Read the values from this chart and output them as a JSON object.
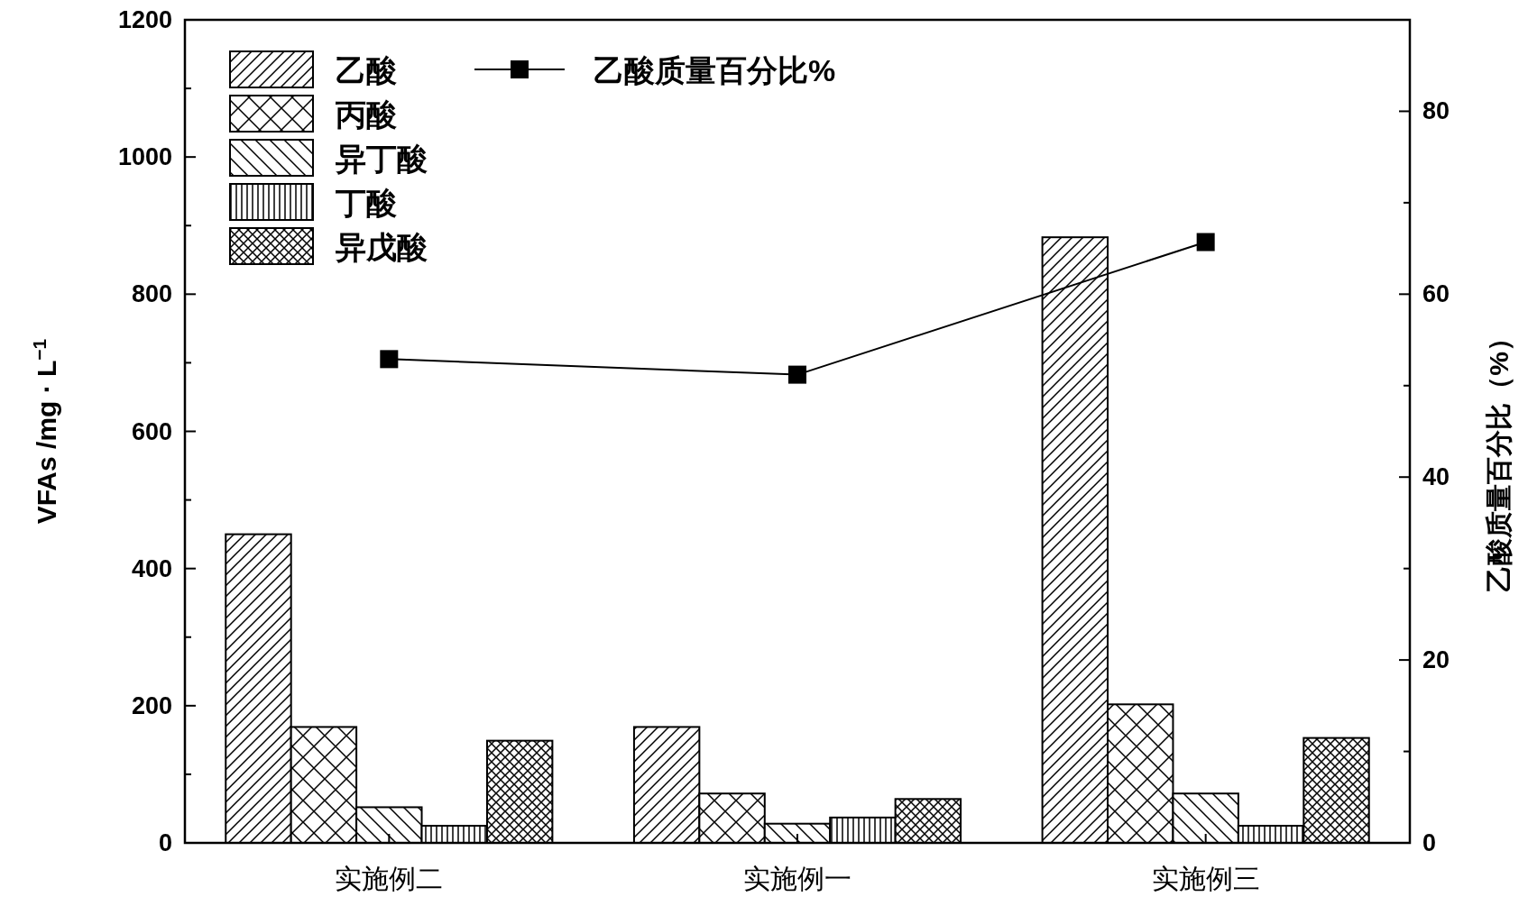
{
  "chart_data": {
    "type": "bar",
    "categories": [
      "实施例二",
      "实施例一",
      "实施例三"
    ],
    "series": [
      {
        "name": "乙酸",
        "color": "#000000",
        "values": [
          450,
          169,
          883
        ]
      },
      {
        "name": "丙酸",
        "color": "#000000",
        "values": [
          169,
          72,
          202
        ]
      },
      {
        "name": "异丁酸",
        "color": "#000000",
        "values": [
          52,
          28,
          72
        ]
      },
      {
        "name": "丁酸",
        "color": "#000000",
        "values": [
          25,
          37,
          25
        ]
      },
      {
        "name": "异戊酸",
        "color": "#000000",
        "values": [
          149,
          64,
          153
        ]
      },
      {
        "name": "乙酸质量百分比%",
        "type": "line",
        "axis": "y2",
        "color": "#000000",
        "values": [
          52.9,
          51.2,
          65.7
        ]
      }
    ],
    "ylim": [
      0,
      1200
    ],
    "yticks": [
      0,
      200,
      400,
      600,
      800,
      1000,
      1200
    ],
    "y2lim": [
      0,
      90
    ],
    "y2ticks": [
      0,
      20,
      40,
      60,
      80
    ],
    "ylabel": "VFAs  /mg · L$^{−1}$",
    "y2label": "乙酸质量百分比（%）",
    "legend": "top left",
    "marker": "square",
    "line_style": "solid"
  }
}
